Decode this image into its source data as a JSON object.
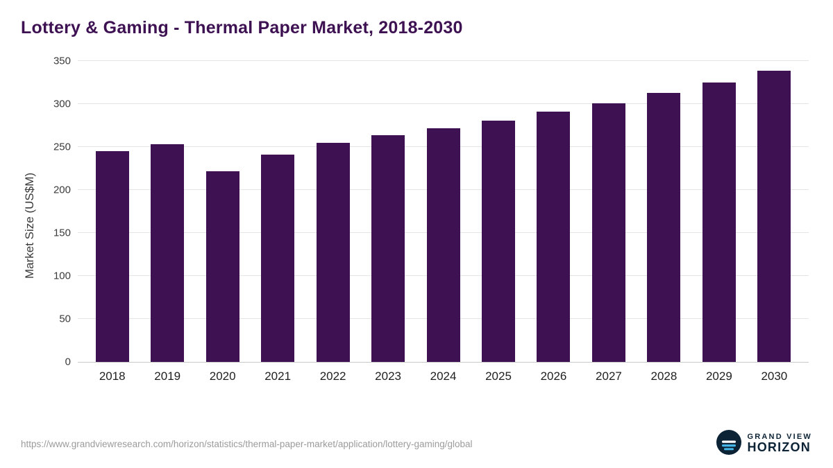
{
  "header": {
    "title": "Lottery & Gaming - Thermal Paper Market, 2018-2030"
  },
  "chart_data": {
    "type": "bar",
    "title": "Lottery & Gaming - Thermal Paper Market, 2018-2030",
    "categories": [
      "2018",
      "2019",
      "2020",
      "2021",
      "2022",
      "2023",
      "2024",
      "2025",
      "2026",
      "2027",
      "2028",
      "2029",
      "2030"
    ],
    "values": [
      245,
      253,
      222,
      241,
      255,
      264,
      272,
      281,
      291,
      301,
      313,
      325,
      339
    ],
    "xlabel": "",
    "ylabel": "Market Size (US$M)",
    "ylim": [
      0,
      350
    ],
    "yticks": [
      0,
      50,
      100,
      150,
      200,
      250,
      300,
      350
    ],
    "grid": true,
    "legend": "none",
    "bar_color": "#3d1152"
  },
  "footer": {
    "source_url": "https://www.grandviewresearch.com/horizon/statistics/thermal-paper-market/application/lottery-gaming/global",
    "logo": {
      "icon": "horizon-sun-icon",
      "brand_top": "GRAND VIEW",
      "brand_bottom": "HORIZON"
    }
  },
  "colors": {
    "bar": "#3d1152",
    "title": "#3d1152",
    "grid": "#e4e4e4",
    "axis_text": "#3a3a3a",
    "url_text": "#9b9b9b",
    "logo_navy": "#0c2336",
    "logo_blue": "#45b6e8"
  }
}
